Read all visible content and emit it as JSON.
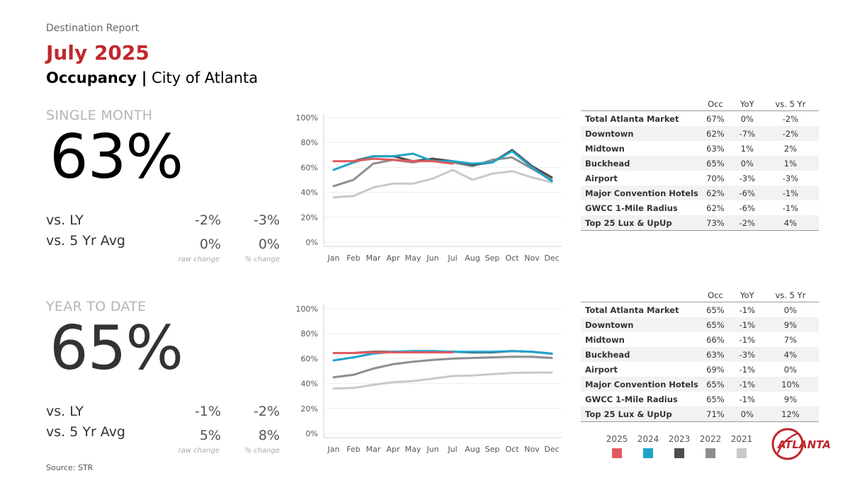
{
  "header": {
    "kicker": "Destination Report",
    "month": "July 2025",
    "metric": "Occupancy",
    "separator": "|",
    "place": "City of Atlanta"
  },
  "single_month": {
    "label": "SINGLE MONTH",
    "value": "63%",
    "rows": [
      {
        "label": "vs. LY",
        "raw": "-2%",
        "pct": "-3%"
      },
      {
        "label": "vs. 5 Yr Avg",
        "raw": "0%",
        "pct": "0%"
      }
    ],
    "raw_caption": "raw change",
    "pct_caption": "% change"
  },
  "ytd": {
    "label": "YEAR TO DATE",
    "value": "65%",
    "rows": [
      {
        "label": "vs. LY",
        "raw": "-1%",
        "pct": "-2%"
      },
      {
        "label": "vs. 5 Yr Avg",
        "raw": "5%",
        "pct": "8%"
      }
    ],
    "raw_caption": "raw change",
    "pct_caption": "% change"
  },
  "tables": {
    "headers": {
      "occ": "Occ",
      "yoy": "YoY",
      "vs5": "vs. 5 Yr"
    },
    "single_month": [
      {
        "name": "Total Atlanta Market",
        "occ": "67%",
        "yoy": "0%",
        "vs5": "-2%"
      },
      {
        "name": "Downtown",
        "occ": "62%",
        "yoy": "-7%",
        "vs5": "-2%"
      },
      {
        "name": "Midtown",
        "occ": "63%",
        "yoy": "1%",
        "vs5": "2%"
      },
      {
        "name": "Buckhead",
        "occ": "65%",
        "yoy": "0%",
        "vs5": "1%"
      },
      {
        "name": "Airport",
        "occ": "70%",
        "yoy": "-3%",
        "vs5": "-3%"
      },
      {
        "name": "Major Convention Hotels",
        "occ": "62%",
        "yoy": "-6%",
        "vs5": "-1%"
      },
      {
        "name": "GWCC 1-Mile Radius",
        "occ": "62%",
        "yoy": "-6%",
        "vs5": "-1%"
      },
      {
        "name": "Top 25 Lux & UpUp",
        "occ": "73%",
        "yoy": "-2%",
        "vs5": "4%"
      }
    ],
    "ytd": [
      {
        "name": "Total Atlanta Market",
        "occ": "65%",
        "yoy": "-1%",
        "vs5": "0%"
      },
      {
        "name": "Downtown",
        "occ": "65%",
        "yoy": "-1%",
        "vs5": "9%"
      },
      {
        "name": "Midtown",
        "occ": "66%",
        "yoy": "-1%",
        "vs5": "7%"
      },
      {
        "name": "Buckhead",
        "occ": "63%",
        "yoy": "-3%",
        "vs5": "4%"
      },
      {
        "name": "Airport",
        "occ": "69%",
        "yoy": "-1%",
        "vs5": "0%"
      },
      {
        "name": "Major Convention Hotels",
        "occ": "65%",
        "yoy": "-1%",
        "vs5": "10%"
      },
      {
        "name": "GWCC 1-Mile Radius",
        "occ": "65%",
        "yoy": "-1%",
        "vs5": "9%"
      },
      {
        "name": "Top 25 Lux & UpUp",
        "occ": "71%",
        "yoy": "0%",
        "vs5": "12%"
      }
    ]
  },
  "legend": [
    {
      "year": "2025",
      "color": "#e05a5f"
    },
    {
      "year": "2024",
      "color": "#1fa3c8"
    },
    {
      "year": "2023",
      "color": "#4d4d4d"
    },
    {
      "year": "2022",
      "color": "#8e8e8e"
    },
    {
      "year": "2021",
      "color": "#c9c9c9"
    }
  ],
  "brand": {
    "logo_text": "ATLANTA",
    "accent": "#c1272d"
  },
  "source": "Source: STR",
  "chart_data": [
    {
      "type": "line",
      "categories": [
        "Jan",
        "Feb",
        "Mar",
        "Apr",
        "May",
        "Jun",
        "Jul",
        "Aug",
        "Sep",
        "Oct",
        "Nov",
        "Dec"
      ],
      "ylim": [
        0,
        100
      ],
      "yticks": [
        "0%",
        "20%",
        "40%",
        "60%",
        "80%",
        "100%"
      ],
      "series": [
        {
          "name": "2021",
          "color": "#c9c9c9",
          "values": [
            36,
            37,
            44,
            47,
            47,
            51,
            58,
            50,
            55,
            57,
            52,
            48
          ]
        },
        {
          "name": "2022",
          "color": "#8e8e8e",
          "values": [
            45,
            50,
            63,
            66,
            64,
            67,
            64,
            61,
            66,
            68,
            59,
            50
          ]
        },
        {
          "name": "2023",
          "color": "#4d4d4d",
          "values": [
            null,
            65,
            69,
            69,
            65,
            67,
            65,
            62,
            64,
            74,
            61,
            52
          ]
        },
        {
          "name": "2024",
          "color": "#1fa3c8",
          "values": [
            58,
            64,
            69,
            69,
            71,
            65,
            65,
            63,
            64,
            73,
            60,
            49
          ]
        },
        {
          "name": "2025",
          "color": "#e05a5f",
          "values": [
            65,
            65,
            67,
            66,
            65,
            65,
            63,
            null,
            null,
            null,
            null,
            null
          ]
        }
      ]
    },
    {
      "type": "line",
      "categories": [
        "Jan",
        "Feb",
        "Mar",
        "Apr",
        "May",
        "Jun",
        "Jul",
        "Aug",
        "Sep",
        "Oct",
        "Nov",
        "Dec"
      ],
      "ylim": [
        0,
        100
      ],
      "yticks": [
        "0%",
        "20%",
        "40%",
        "60%",
        "80%",
        "100%"
      ],
      "series": [
        {
          "name": "2021",
          "color": "#c9c9c9",
          "values": [
            36,
            36.5,
            39,
            41,
            42,
            44,
            46,
            46.5,
            47.5,
            48.5,
            48.8,
            48.8
          ]
        },
        {
          "name": "2022",
          "color": "#8e8e8e",
          "values": [
            45,
            47,
            52,
            55.5,
            57.5,
            59,
            60,
            60.5,
            61,
            61.5,
            61.5,
            60.5
          ]
        },
        {
          "name": "2023",
          "color": "#4d4d4d",
          "values": [
            null,
            64.5,
            65.5,
            65.5,
            65.5,
            65.5,
            65.5,
            65,
            65,
            66,
            65.5,
            64
          ]
        },
        {
          "name": "2024",
          "color": "#1fa3c8",
          "values": [
            58.5,
            61,
            64,
            65.5,
            66,
            66,
            65.5,
            65.5,
            65.5,
            66,
            65.5,
            64
          ]
        },
        {
          "name": "2025",
          "color": "#e05a5f",
          "values": [
            64.5,
            64.5,
            65,
            65,
            65,
            65,
            65,
            null,
            null,
            null,
            null,
            null
          ]
        }
      ]
    }
  ]
}
